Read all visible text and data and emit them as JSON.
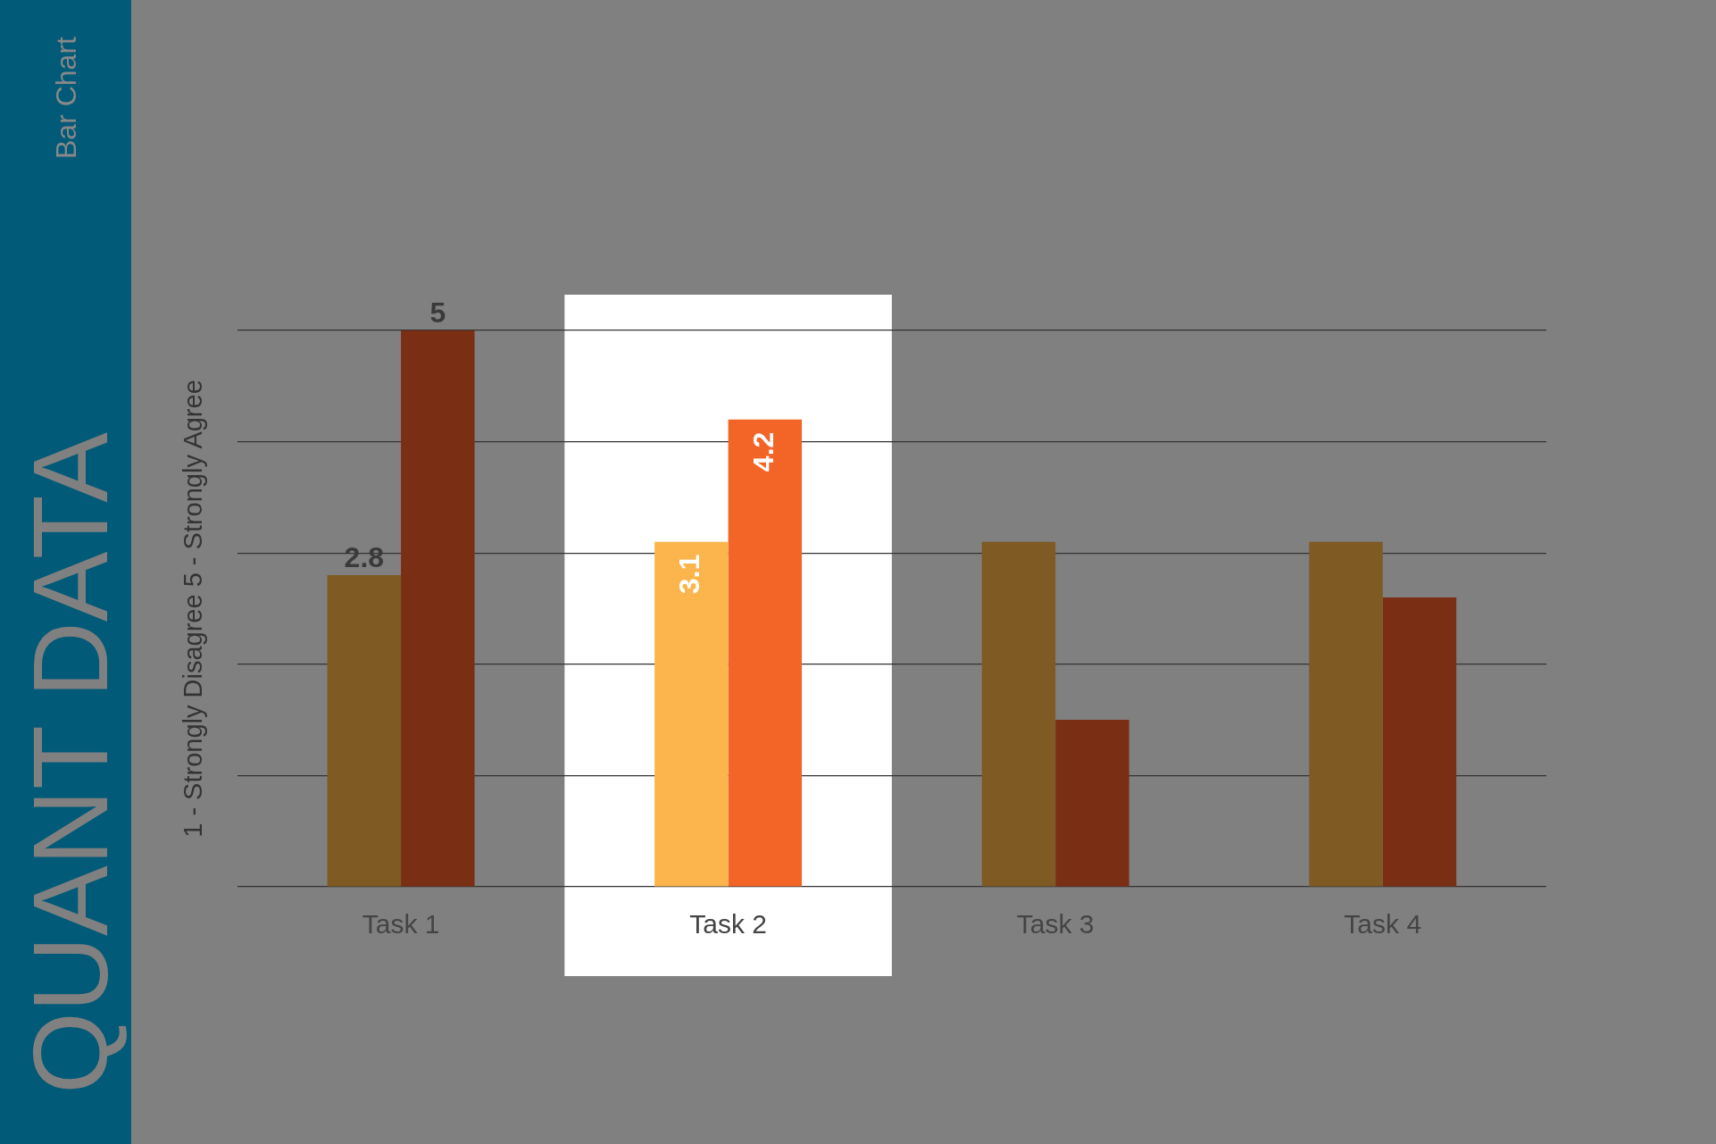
{
  "chart_data": {
    "type": "bar",
    "title": "QUANT DATA",
    "subtitle": "Bar Chart",
    "ylabel": "1 - Strongly Disagree 5 - Strongly Agree",
    "categories": [
      "Task 1",
      "Task 2",
      "Task 3",
      "Task 4"
    ],
    "series": [
      {
        "colors": [
          "#7f5a23",
          "#fbb54c",
          "#7f5a23",
          "#7f5a23"
        ],
        "values": [
          2.8,
          3.1,
          3.1,
          3.1
        ],
        "value_labels": [
          "2.8",
          "3.1",
          null,
          null
        ]
      },
      {
        "colors": [
          "#7a2e14",
          "#f26527",
          "#7a2e14",
          "#7a2e14"
        ],
        "values": [
          5,
          4.2,
          1.5,
          2.6
        ],
        "value_labels": [
          "5",
          "4.2",
          null,
          null
        ]
      }
    ],
    "ylim": [
      0,
      5
    ],
    "yticks": [
      {
        "value": 0,
        "label": null
      },
      {
        "value": 1,
        "label": null
      },
      {
        "value": 2,
        "label": null
      },
      {
        "value": 3,
        "label": null
      },
      {
        "value": 4,
        "label": null
      },
      {
        "value": 5,
        "label": null
      }
    ],
    "grid": "y",
    "legend": false,
    "bands": [
      {
        "axis": "x",
        "from": "Task 2",
        "to": "Task 2",
        "color": "#ffffff"
      }
    ]
  }
}
